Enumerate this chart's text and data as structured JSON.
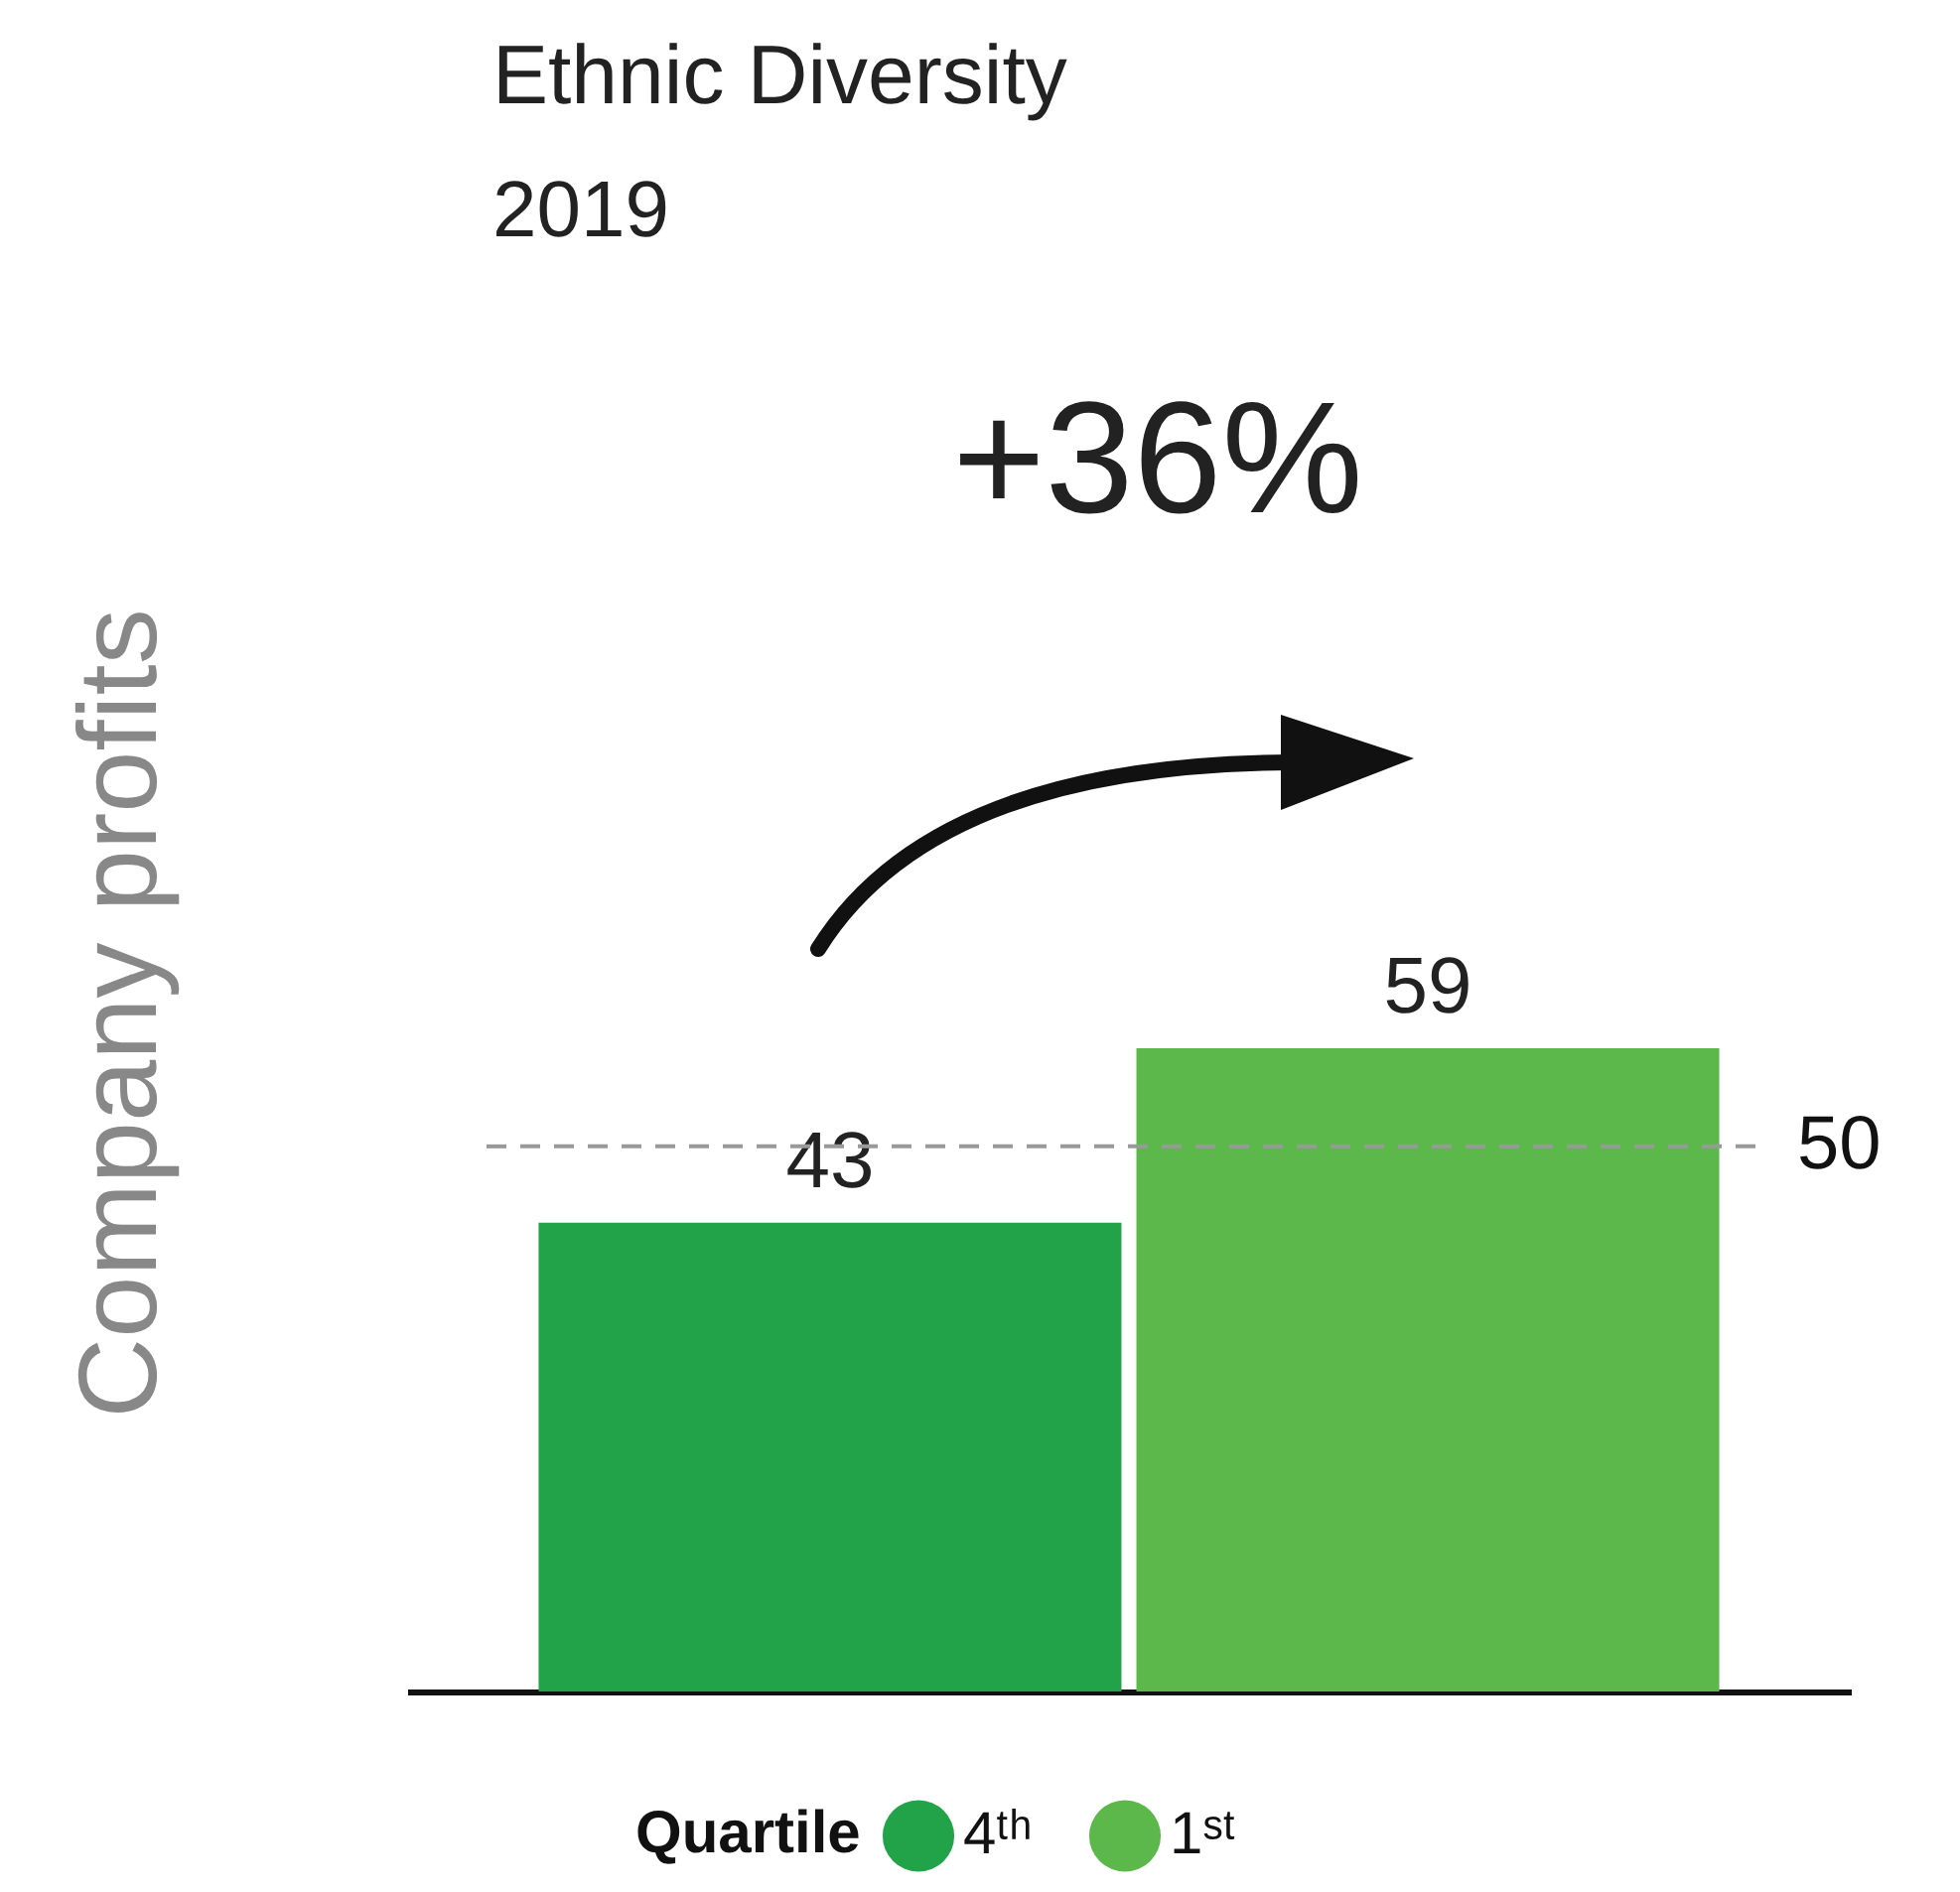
{
  "chart_data": {
    "type": "bar",
    "title": "Ethnic Diversity",
    "subtitle": "2019",
    "ylabel": "Company profits",
    "legend_title": "Quartile",
    "annotations": [
      "+36%"
    ],
    "categories": [
      null,
      null
    ],
    "series": [
      {
        "name": "4ᵗʰ",
        "color": "#22a34a",
        "values": [
          43,
          null
        ]
      },
      {
        "name": "1ˢᵗ",
        "color": "#5db84c",
        "values": [
          null,
          59
        ]
      }
    ],
    "stacked": true,
    "data_labels": true,
    "legend": "bottom",
    "ref_lines": [
      {
        "axis": "y",
        "value": 50,
        "label": "50",
        "color": "#999999",
        "line_style": "dashed"
      }
    ]
  }
}
